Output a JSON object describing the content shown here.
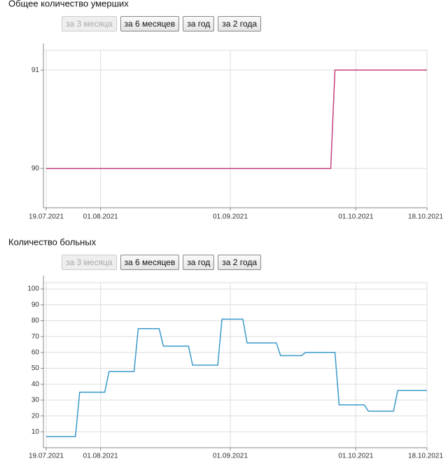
{
  "chart_data": [
    {
      "type": "line",
      "title": "Общее количество умерших",
      "buttons": [
        {
          "label": "за 3 месяца",
          "disabled": true
        },
        {
          "label": "за 6 месяцев",
          "disabled": false
        },
        {
          "label": "за год",
          "disabled": false
        },
        {
          "label": "за 2 года",
          "disabled": false
        }
      ],
      "x": [
        "19.07.2021",
        "25.09.2021",
        "26.09.2021",
        "18.10.2021"
      ],
      "values": [
        90,
        90,
        91,
        91
      ],
      "color": "#c2407f",
      "xlim": [
        "19.07.2021",
        "18.10.2021"
      ],
      "xticks": [
        "19.07.2021",
        "01.08.2021",
        "01.09.2021",
        "01.10.2021",
        "18.10.2021"
      ],
      "ylim": [
        89.6,
        91.2
      ],
      "yticks": [
        90,
        91
      ],
      "grid": true
    },
    {
      "type": "line",
      "title": "Количество больных",
      "buttons": [
        {
          "label": "за 3 месяца",
          "disabled": true
        },
        {
          "label": "за 6 месяцев",
          "disabled": false
        },
        {
          "label": "за год",
          "disabled": false
        },
        {
          "label": "за 2 года",
          "disabled": false
        }
      ],
      "x": [
        "19.07.2021",
        "26.07.2021",
        "27.07.2021",
        "02.08.2021",
        "03.08.2021",
        "09.08.2021",
        "10.08.2021",
        "15.08.2021",
        "16.08.2021",
        "22.08.2021",
        "23.08.2021",
        "29.08.2021",
        "30.08.2021",
        "04.09.2021",
        "05.09.2021",
        "12.09.2021",
        "13.09.2021",
        "18.09.2021",
        "19.09.2021",
        "26.09.2021",
        "27.09.2021",
        "03.10.2021",
        "04.10.2021",
        "10.10.2021",
        "11.10.2021",
        "18.10.2021"
      ],
      "values": [
        7,
        7,
        35,
        35,
        48,
        48,
        75,
        75,
        64,
        64,
        52,
        52,
        81,
        81,
        66,
        66,
        58,
        58,
        60,
        60,
        27,
        27,
        23,
        23,
        36,
        36
      ],
      "color": "#3a9ac9",
      "xlim": [
        "19.07.2021",
        "18.10.2021"
      ],
      "xticks": [
        "19.07.2021",
        "01.08.2021",
        "01.09.2021",
        "01.10.2021",
        "18.10.2021"
      ],
      "ylim": [
        0,
        104
      ],
      "yticks": [
        10,
        20,
        30,
        40,
        50,
        60,
        70,
        80,
        90,
        100
      ],
      "grid": true
    }
  ]
}
